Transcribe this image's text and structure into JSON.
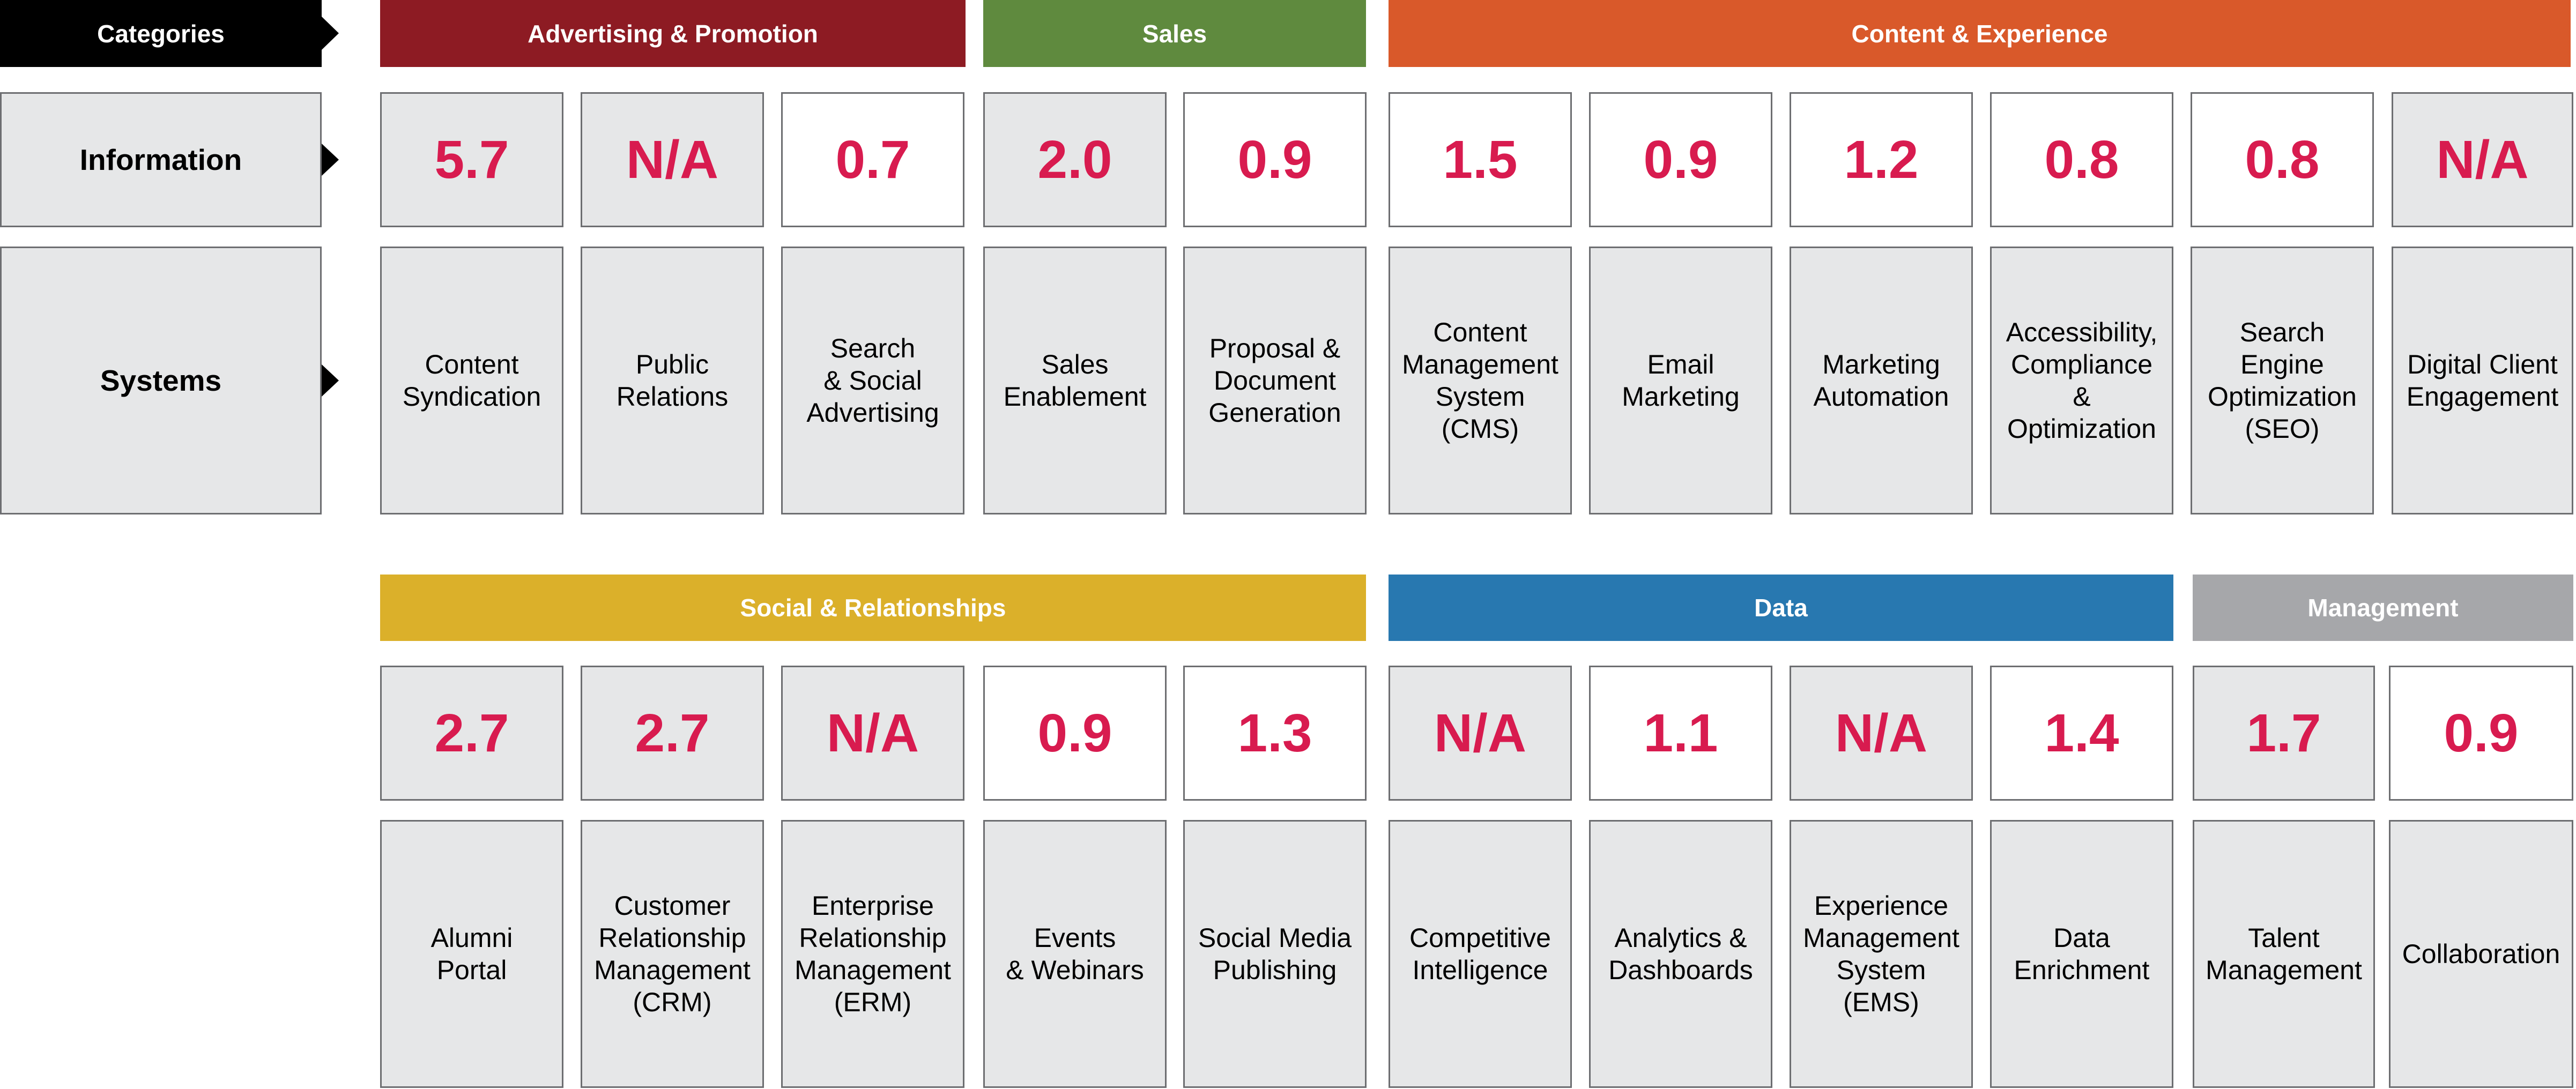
{
  "colors": {
    "value_text": "#d81b4f",
    "cell_gray": "#e6e7e8",
    "cell_white": "#ffffff",
    "header_black": "#000000"
  },
  "labels": {
    "categories": "Categories",
    "information": "Information",
    "systems": "Systems"
  },
  "top": {
    "groups": [
      {
        "name": "Advertising & Promotion",
        "color": "#8d1b23"
      },
      {
        "name": "Sales",
        "color": "#5f8a3e"
      },
      {
        "name": "Content & Experience",
        "color": "#d9592a"
      }
    ],
    "cells": [
      {
        "value": "5.7",
        "shaded": true,
        "system": "Content\nSyndication"
      },
      {
        "value": "N/A",
        "shaded": true,
        "system": "Public\nRelations"
      },
      {
        "value": "0.7",
        "shaded": false,
        "system": "Search\n& Social\nAdvertising"
      },
      {
        "value": "2.0",
        "shaded": true,
        "system": "Sales\nEnablement"
      },
      {
        "value": "0.9",
        "shaded": false,
        "system": "Proposal &\nDocument\nGeneration"
      },
      {
        "value": "1.5",
        "shaded": false,
        "system": "Content\nManagement\nSystem\n(CMS)"
      },
      {
        "value": "0.9",
        "shaded": false,
        "system": "Email\nMarketing"
      },
      {
        "value": "1.2",
        "shaded": false,
        "system": "Marketing\nAutomation"
      },
      {
        "value": "0.8",
        "shaded": false,
        "system": "Accessibility,\nCompliance\n& Optimization"
      },
      {
        "value": "0.8",
        "shaded": false,
        "system": "Search\nEngine\nOptimization\n(SEO)"
      },
      {
        "value": "N/A",
        "shaded": true,
        "system": "Digital Client\nEngagement"
      }
    ]
  },
  "bottom": {
    "groups": [
      {
        "name": "Social & Relationships",
        "color": "#dbb02a"
      },
      {
        "name": "Data",
        "color": "#2878b0"
      },
      {
        "name": "Management",
        "color": "#a6a7aa"
      }
    ],
    "cells": [
      {
        "value": "2.7",
        "shaded": true,
        "system": "Alumni\nPortal"
      },
      {
        "value": "2.7",
        "shaded": true,
        "system": "Customer\nRelationship\nManagement\n(CRM)"
      },
      {
        "value": "N/A",
        "shaded": true,
        "system": "Enterprise\nRelationship\nManagement\n(ERM)"
      },
      {
        "value": "0.9",
        "shaded": false,
        "system": "Events\n& Webinars"
      },
      {
        "value": "1.3",
        "shaded": false,
        "system": "Social Media\nPublishing"
      },
      {
        "value": "N/A",
        "shaded": true,
        "system": "Competitive\nIntelligence"
      },
      {
        "value": "1.1",
        "shaded": false,
        "system": "Analytics &\nDashboards"
      },
      {
        "value": "N/A",
        "shaded": true,
        "system": "Experience\nManagement\nSystem\n(EMS)"
      },
      {
        "value": "1.4",
        "shaded": false,
        "system": "Data\nEnrichment"
      },
      {
        "value": "1.7",
        "shaded": true,
        "system": "Talent\nManagement"
      },
      {
        "value": "0.9",
        "shaded": false,
        "system": "Collaboration"
      }
    ]
  }
}
